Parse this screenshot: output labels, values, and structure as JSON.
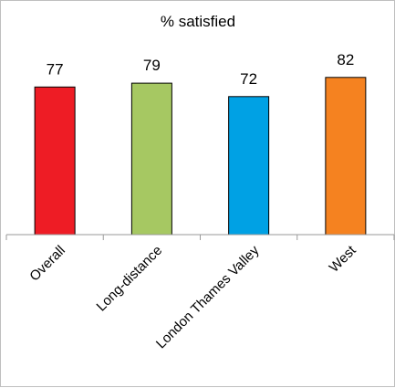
{
  "chart_data": {
    "type": "bar",
    "title": "% satisfied",
    "categories": [
      "Overall",
      "Long-distance",
      "London Thames Valley",
      "West"
    ],
    "values": [
      77,
      79,
      72,
      82
    ],
    "data_labels": [
      "77",
      "79",
      "72",
      "82"
    ],
    "colors": [
      "#ee1c25",
      "#a6c862",
      "#00a1e4",
      "#f58220"
    ],
    "ylim": [
      0,
      100
    ],
    "grid": false,
    "legend": "none",
    "xlabel": "",
    "ylabel": ""
  }
}
